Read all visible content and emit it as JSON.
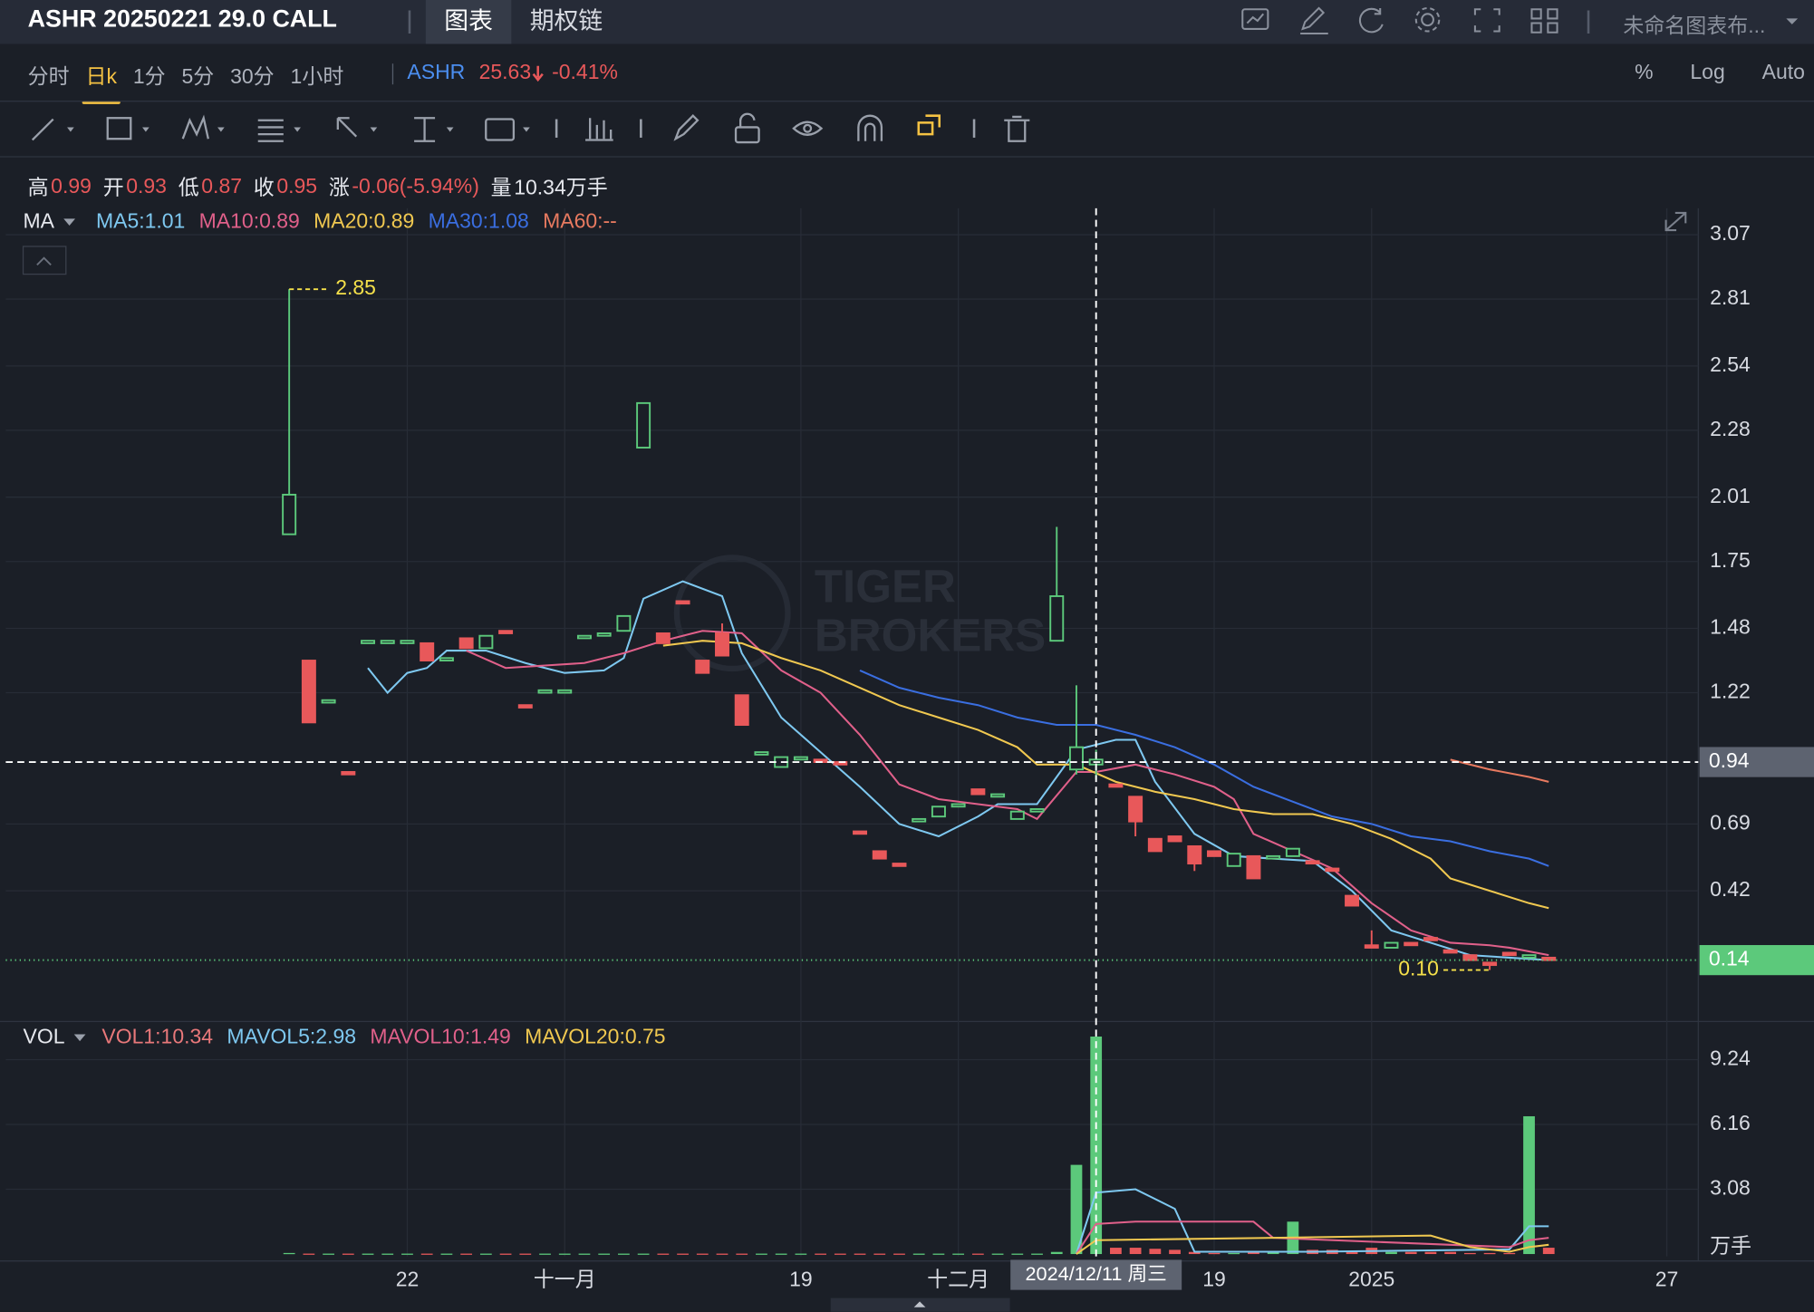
{
  "header": {
    "title": "ASHR 20250221 29.0 CALL",
    "tabs": [
      "图表",
      "期权链"
    ],
    "layout_name": "未命名图表布..."
  },
  "toolbar": {
    "periods": [
      "分时",
      "日k",
      "1分",
      "5分",
      "30分",
      "1小时"
    ],
    "active_period": 1,
    "symbol": "ASHR",
    "price": "25.63",
    "change": "-0.41%",
    "options": [
      "%",
      "Log",
      "Auto"
    ]
  },
  "quote": {
    "labels": [
      "高",
      "开",
      "低",
      "收",
      "涨",
      "量"
    ],
    "values": [
      "0.99",
      "0.93",
      "0.87",
      "0.95",
      "-0.06(-5.94%)",
      "10.34万手"
    ]
  },
  "chart_data": {
    "type": "candlestick",
    "watermark": [
      "TIGER",
      "BROKERS"
    ],
    "legend_label": "MA",
    "up_color": "#5cc97b",
    "down_color": "#e8585a",
    "ohlc": [
      [
        1.86,
        2.85,
        1.86,
        2.02
      ],
      [
        1.35,
        1.35,
        1.1,
        1.1
      ],
      [
        1.18,
        1.19,
        1.18,
        1.19
      ],
      [
        0.9,
        0.9,
        0.89,
        0.89
      ],
      [
        1.42,
        1.43,
        1.42,
        1.43
      ],
      [
        1.42,
        1.43,
        1.42,
        1.43
      ],
      [
        1.42,
        1.43,
        1.42,
        1.43
      ],
      [
        1.42,
        1.42,
        1.35,
        1.35
      ],
      [
        1.35,
        1.36,
        1.35,
        1.36
      ],
      [
        1.44,
        1.44,
        1.4,
        1.4
      ],
      [
        1.4,
        1.45,
        1.4,
        1.45
      ],
      [
        1.47,
        1.47,
        1.46,
        1.46
      ],
      [
        1.17,
        1.17,
        1.16,
        1.16
      ],
      [
        1.22,
        1.23,
        1.22,
        1.23
      ],
      [
        1.22,
        1.23,
        1.22,
        1.23
      ],
      [
        1.44,
        1.45,
        1.44,
        1.45
      ],
      [
        1.45,
        1.46,
        1.45,
        1.46
      ],
      [
        1.47,
        1.53,
        1.47,
        1.53
      ],
      [
        2.21,
        2.39,
        2.21,
        2.39
      ],
      [
        1.46,
        1.46,
        1.42,
        1.42
      ],
      [
        1.59,
        1.59,
        1.58,
        1.58
      ],
      [
        1.35,
        1.35,
        1.3,
        1.3
      ],
      [
        1.46,
        1.5,
        1.37,
        1.37
      ],
      [
        1.21,
        1.21,
        1.09,
        1.09
      ],
      [
        0.97,
        0.98,
        0.97,
        0.98
      ],
      [
        0.92,
        0.96,
        0.92,
        0.96
      ],
      [
        0.95,
        0.96,
        0.95,
        0.96
      ],
      [
        0.95,
        0.95,
        0.94,
        0.94
      ],
      [
        0.94,
        0.94,
        0.93,
        0.93
      ],
      [
        0.66,
        0.66,
        0.65,
        0.65
      ],
      [
        0.58,
        0.58,
        0.55,
        0.55
      ],
      [
        0.53,
        0.53,
        0.52,
        0.52
      ],
      [
        0.7,
        0.71,
        0.7,
        0.71
      ],
      [
        0.72,
        0.76,
        0.72,
        0.76
      ],
      [
        0.76,
        0.77,
        0.76,
        0.77
      ],
      [
        0.83,
        0.83,
        0.81,
        0.81
      ],
      [
        0.8,
        0.81,
        0.8,
        0.81
      ],
      [
        0.71,
        0.74,
        0.71,
        0.74
      ],
      [
        0.74,
        0.75,
        0.74,
        0.75
      ],
      [
        1.43,
        1.89,
        1.43,
        1.61
      ],
      [
        0.91,
        1.25,
        0.89,
        1.0
      ],
      [
        0.93,
        0.99,
        0.87,
        0.95
      ],
      [
        0.85,
        0.85,
        0.84,
        0.84
      ],
      [
        0.8,
        0.8,
        0.64,
        0.7
      ],
      [
        0.63,
        0.63,
        0.58,
        0.58
      ],
      [
        0.64,
        0.64,
        0.62,
        0.62
      ],
      [
        0.6,
        0.6,
        0.5,
        0.53
      ],
      [
        0.58,
        0.58,
        0.56,
        0.56
      ],
      [
        0.52,
        0.57,
        0.52,
        0.57
      ],
      [
        0.56,
        0.56,
        0.47,
        0.47
      ],
      [
        0.55,
        0.56,
        0.55,
        0.56
      ],
      [
        0.56,
        0.59,
        0.56,
        0.59
      ],
      [
        0.54,
        0.54,
        0.53,
        0.53
      ],
      [
        0.51,
        0.51,
        0.5,
        0.5
      ],
      [
        0.4,
        0.4,
        0.36,
        0.36
      ],
      [
        0.2,
        0.26,
        0.19,
        0.19
      ],
      [
        0.19,
        0.21,
        0.19,
        0.21
      ],
      [
        0.21,
        0.21,
        0.2,
        0.2
      ],
      [
        0.23,
        0.23,
        0.22,
        0.22
      ],
      [
        0.18,
        0.18,
        0.17,
        0.17
      ],
      [
        0.16,
        0.16,
        0.14,
        0.14
      ],
      [
        0.13,
        0.13,
        0.1,
        0.12
      ],
      [
        0.17,
        0.17,
        0.16,
        0.16
      ],
      [
        0.15,
        0.16,
        0.15,
        0.16
      ],
      [
        0.15,
        0.15,
        0.14,
        0.14
      ]
    ],
    "xlim": [
      -14.4,
      71.6
    ],
    "xticks": [
      {
        "value": 6,
        "label": "22"
      },
      {
        "value": 14,
        "label": "十一月"
      },
      {
        "value": 26,
        "label": "19"
      },
      {
        "value": 34,
        "label": "十二月"
      },
      {
        "value": 47,
        "label": "19"
      },
      {
        "value": 55,
        "label": "2025"
      },
      {
        "value": 70,
        "label": "27"
      }
    ],
    "ylim": [
      -0.094,
      3.177
    ],
    "yticks": [
      3.07,
      2.81,
      2.54,
      2.28,
      2.01,
      1.75,
      1.48,
      1.22,
      0.69,
      0.42
    ],
    "grid": true,
    "ma_series": [
      {
        "name": "MA5:1.01",
        "color": "#7ec8f0",
        "x": [
          4,
          5,
          6,
          7,
          8,
          10,
          12,
          14,
          16,
          17,
          18,
          20,
          22,
          23,
          25,
          27,
          29,
          31,
          33,
          35,
          36,
          38,
          40,
          42,
          43,
          44,
          46,
          48,
          50,
          52,
          54,
          56,
          58,
          60,
          62,
          64
        ],
        "values": [
          1.32,
          1.22,
          1.3,
          1.32,
          1.39,
          1.39,
          1.34,
          1.3,
          1.31,
          1.36,
          1.6,
          1.67,
          1.61,
          1.38,
          1.12,
          0.98,
          0.84,
          0.69,
          0.64,
          0.72,
          0.77,
          0.77,
          0.99,
          1.03,
          1.03,
          0.86,
          0.65,
          0.56,
          0.55,
          0.54,
          0.42,
          0.26,
          0.21,
          0.16,
          0.15,
          0.14
        ]
      },
      {
        "name": "MA10:0.89",
        "color": "#e0608a",
        "x": [
          9,
          11,
          13,
          15,
          17,
          19,
          21,
          23,
          25,
          27,
          29,
          31,
          33,
          35,
          37,
          38,
          40,
          41,
          43,
          45,
          47,
          48,
          49,
          51,
          53,
          55,
          57,
          59,
          61,
          62,
          64
        ],
        "values": [
          1.39,
          1.32,
          1.33,
          1.34,
          1.38,
          1.43,
          1.47,
          1.46,
          1.31,
          1.22,
          1.05,
          0.85,
          0.79,
          0.77,
          0.75,
          0.71,
          0.9,
          0.9,
          0.93,
          0.89,
          0.84,
          0.79,
          0.65,
          0.58,
          0.51,
          0.37,
          0.26,
          0.21,
          0.2,
          0.19,
          0.16
        ]
      },
      {
        "name": "MA20:0.89",
        "color": "#f0c850",
        "x": [
          19,
          21,
          23,
          25,
          27,
          29,
          31,
          33,
          35,
          37,
          38,
          40,
          42,
          44,
          46,
          48,
          50,
          52,
          54,
          56,
          58,
          59,
          61,
          63,
          64
        ],
        "values": [
          1.41,
          1.43,
          1.42,
          1.36,
          1.31,
          1.24,
          1.17,
          1.12,
          1.07,
          1.0,
          0.93,
          0.93,
          0.86,
          0.82,
          0.79,
          0.75,
          0.73,
          0.73,
          0.69,
          0.63,
          0.55,
          0.47,
          0.42,
          0.37,
          0.35
        ]
      },
      {
        "name": "MA30:1.08",
        "color": "#3a6ee0",
        "x": [
          29,
          31,
          33,
          35,
          37,
          39,
          41,
          43,
          45,
          47,
          49,
          51,
          53,
          55,
          57,
          59,
          61,
          63,
          64
        ],
        "values": [
          1.31,
          1.24,
          1.2,
          1.17,
          1.12,
          1.09,
          1.09,
          1.05,
          1.0,
          0.93,
          0.84,
          0.78,
          0.72,
          0.69,
          0.64,
          0.62,
          0.58,
          0.55,
          0.52
        ]
      },
      {
        "name": "MA60:--",
        "color": "#e87a60",
        "x": [
          59,
          61,
          63,
          64
        ],
        "values": [
          0.95,
          0.91,
          0.88,
          0.86
        ]
      }
    ],
    "annotations": [
      {
        "index": 0,
        "value": 2.85,
        "label": "2.85"
      },
      {
        "index": 61,
        "value": 0.1,
        "label": "0.10"
      }
    ],
    "crosshair": {
      "x": 41,
      "y": 0.94,
      "date_label": "2024/12/11 周三"
    },
    "last_price": 0.14,
    "vol_legend_label": "VOL",
    "vol_ylim": [
      -0.11,
      11.0
    ],
    "vol_yticks": [
      9.24,
      6.16,
      3.08
    ],
    "vol_unit": "万手",
    "volume": {
      "name": "VOL1:10.34",
      "color": "#e8787a",
      "values": [
        0.05,
        0.02,
        0.02,
        0.02,
        0.02,
        0.02,
        0.02,
        0.02,
        0.02,
        0.02,
        0.02,
        0.02,
        0.02,
        0.02,
        0.02,
        0.02,
        0.02,
        0.02,
        0.02,
        0.02,
        0.02,
        0.02,
        0.02,
        0.02,
        0.02,
        0.02,
        0.02,
        0.02,
        0.02,
        0.02,
        0.02,
        0.02,
        0.02,
        0.02,
        0.02,
        0.02,
        0.02,
        0.02,
        0.02,
        0.1,
        4.24,
        10.34,
        0.3,
        0.3,
        0.25,
        0.2,
        0.1,
        0.05,
        0.05,
        0.1,
        0.1,
        1.54,
        0.2,
        0.2,
        0.15,
        0.3,
        0.1,
        0.1,
        0.1,
        0.1,
        0.05,
        0.05,
        0.05,
        6.55,
        0.3
      ]
    },
    "vol_series": [
      {
        "name": "MAVOL5:2.98",
        "color": "#7ec8f0",
        "x": [
          40,
          41,
          43,
          45,
          46,
          50,
          52,
          62,
          63,
          64
        ],
        "values": [
          0,
          2.92,
          3.08,
          2.15,
          0.11,
          0.11,
          0.11,
          0.22,
          1.32,
          1.32
        ]
      },
      {
        "name": "MAVOL10:1.49",
        "color": "#e0608a",
        "x": [
          40,
          41,
          43,
          49,
          50,
          62,
          63,
          64
        ],
        "values": [
          0,
          1.43,
          1.54,
          1.54,
          0.77,
          0.33,
          0.66,
          0.77
        ]
      },
      {
        "name": "MAVOL20:0.75",
        "color": "#f0c850",
        "x": [
          40,
          41,
          50,
          58,
          60,
          62,
          63,
          64
        ],
        "values": [
          0,
          0.66,
          0.77,
          0.88,
          0.33,
          0.11,
          0.33,
          0.44
        ]
      }
    ]
  }
}
